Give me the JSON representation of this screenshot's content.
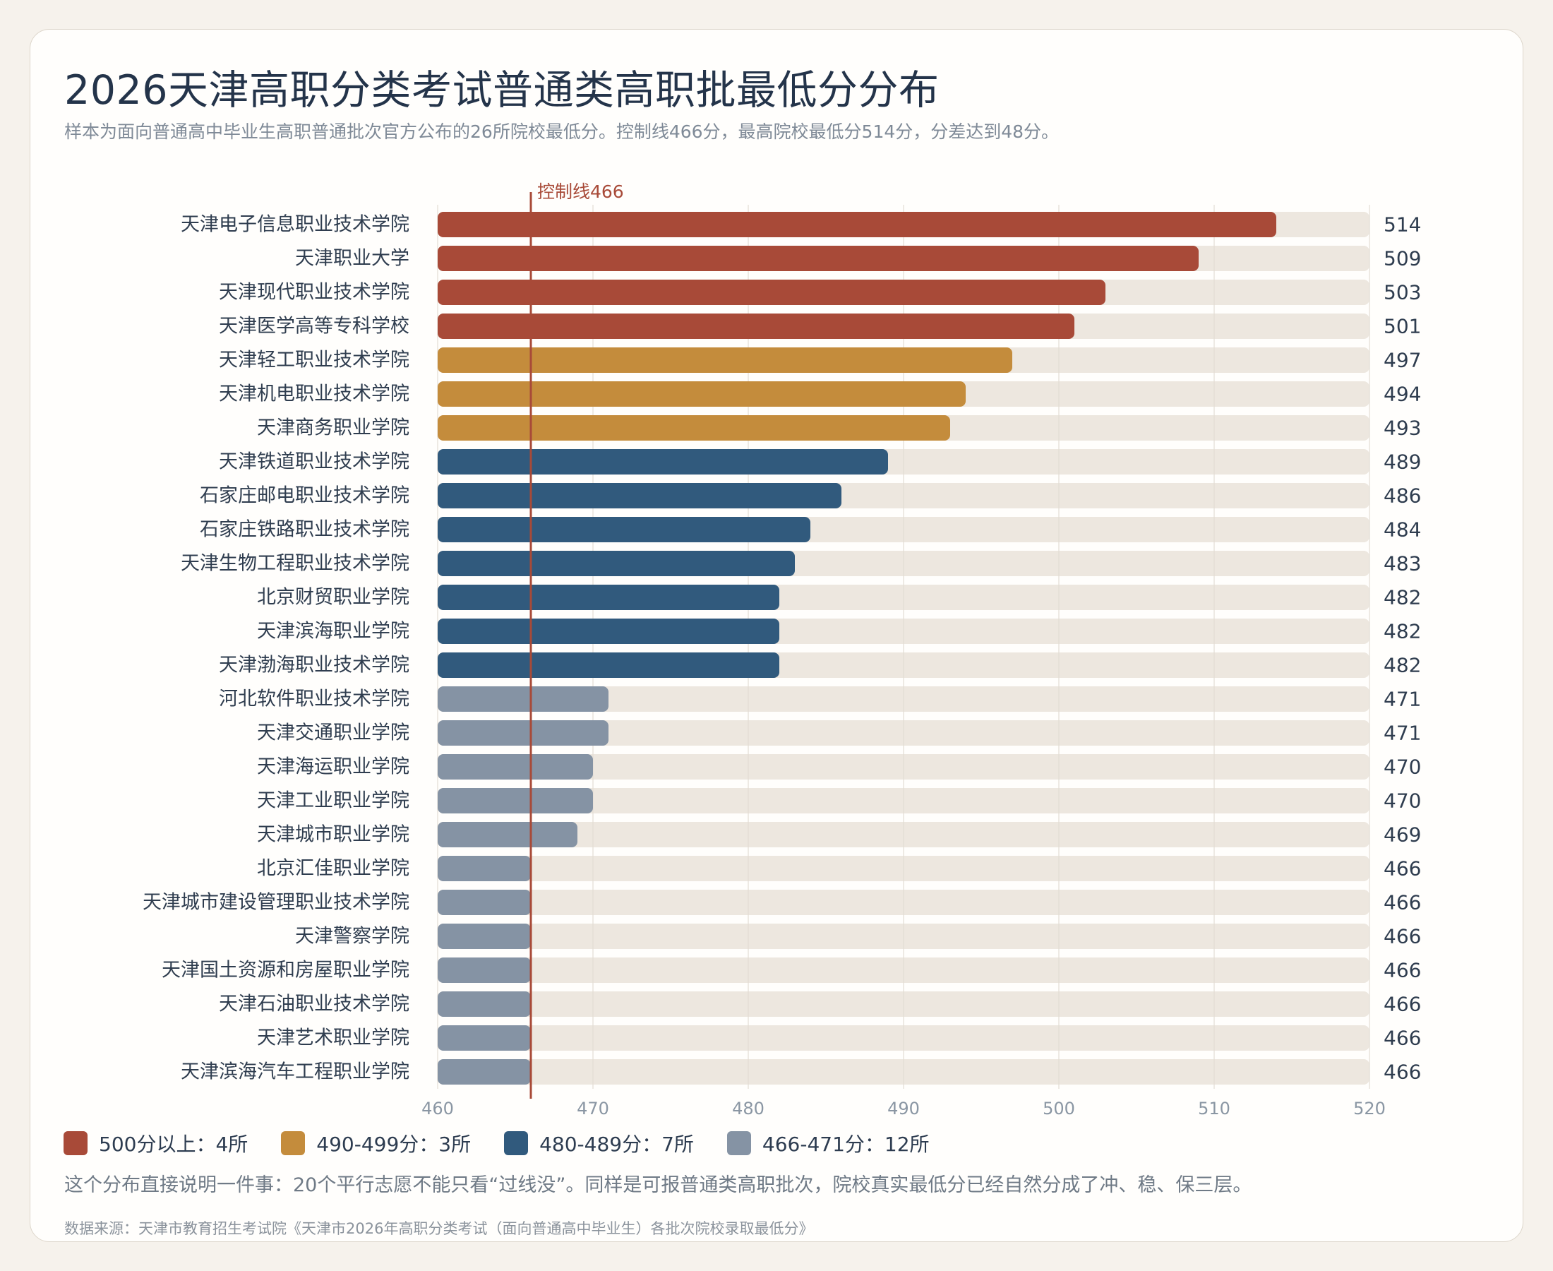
{
  "page": {
    "title": "2026天津高职分类考试普通类高职批最低分分布",
    "subtitle": "样本为面向普通高中毕业生高职普通批次官方公布的26所院校最低分。控制线466分，最高院校最低分514分，分差达到48分。",
    "note": "这个分布直接说明一件事：20个平行志愿不能只看“过线没”。同样是可报普通类高职批次，院校真实最低分已经自然分成了冲、稳、保三层。",
    "source": "数据来源：天津市教育招生考试院《天津市2026年高职分类考试（面向普通高中毕业生）各批次院校录取最低分》"
  },
  "legend": [
    {
      "label": "500分以上：4所",
      "color": "#a84a38"
    },
    {
      "label": "490-499分：3所",
      "color": "#c48c3c"
    },
    {
      "label": "480-489分：7所",
      "color": "#315a7d"
    },
    {
      "label": "466-471分：12所",
      "color": "#8593a4"
    }
  ],
  "chart_data": {
    "type": "bar",
    "orientation": "horizontal",
    "categories": [
      "天津电子信息职业技术学院",
      "天津职业大学",
      "天津现代职业技术学院",
      "天津医学高等专科学校",
      "天津轻工职业技术学院",
      "天津机电职业技术学院",
      "天津商务职业学院",
      "天津铁道职业技术学院",
      "石家庄邮电职业技术学院",
      "石家庄铁路职业技术学院",
      "天津生物工程职业技术学院",
      "北京财贸职业学院",
      "天津滨海职业学院",
      "天津渤海职业技术学院",
      "河北软件职业技术学院",
      "天津交通职业学院",
      "天津海运职业学院",
      "天津工业职业学院",
      "天津城市职业学院",
      "北京汇佳职业学院",
      "天津城市建设管理职业技术学院",
      "天津警察学院",
      "天津国土资源和房屋职业学院",
      "天津石油职业技术学院",
      "天津艺术职业学院",
      "天津滨海汽车工程职业学院"
    ],
    "values": [
      514,
      509,
      503,
      501,
      497,
      494,
      493,
      489,
      486,
      484,
      483,
      482,
      482,
      482,
      471,
      471,
      470,
      470,
      469,
      466,
      466,
      466,
      466,
      466,
      466,
      466
    ],
    "xlim": [
      460,
      520
    ],
    "xticks": [
      460,
      470,
      480,
      490,
      500,
      510,
      520
    ],
    "reference_line": {
      "value": 466,
      "label": "控制线466",
      "color": "#a84a38"
    },
    "tiers": [
      {
        "min": 500,
        "color": "#a84a38"
      },
      {
        "min": 490,
        "color": "#c48c3c"
      },
      {
        "min": 480,
        "color": "#315a7d"
      },
      {
        "min": 0,
        "color": "#8593a4"
      }
    ],
    "track_color": "#ede7df",
    "grid": true
  }
}
